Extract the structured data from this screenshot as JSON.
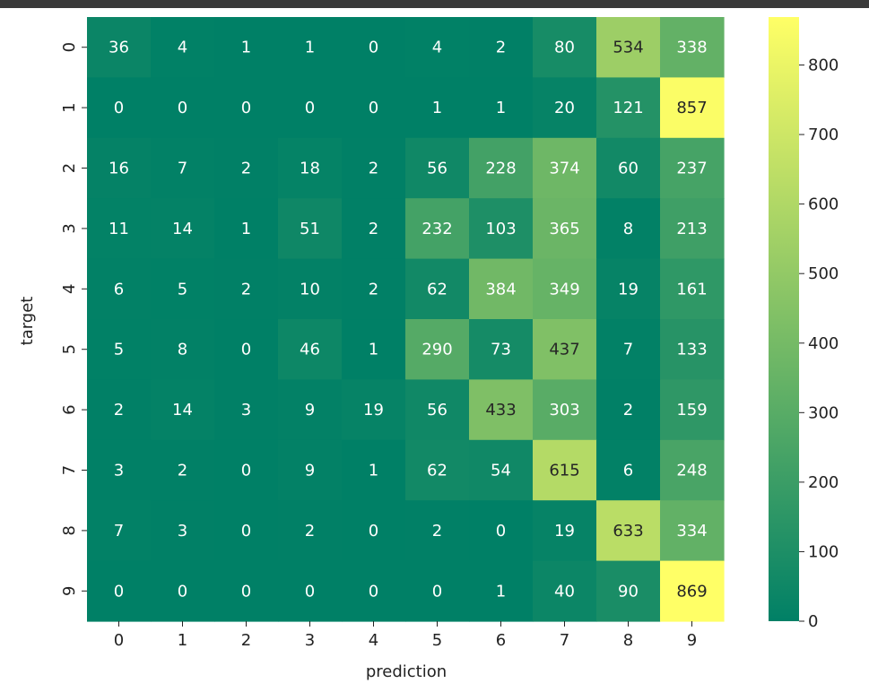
{
  "chart_data": {
    "type": "heatmap",
    "title": "",
    "xlabel": "prediction",
    "ylabel": "target",
    "x_categories": [
      "0",
      "1",
      "2",
      "3",
      "4",
      "5",
      "6",
      "7",
      "8",
      "9"
    ],
    "y_categories": [
      "0",
      "1",
      "2",
      "3",
      "4",
      "5",
      "6",
      "7",
      "8",
      "9"
    ],
    "values": [
      [
        36,
        4,
        1,
        1,
        0,
        4,
        2,
        80,
        534,
        338
      ],
      [
        0,
        0,
        0,
        0,
        0,
        1,
        1,
        20,
        121,
        857
      ],
      [
        16,
        7,
        2,
        18,
        2,
        56,
        228,
        374,
        60,
        237
      ],
      [
        11,
        14,
        1,
        51,
        2,
        232,
        103,
        365,
        8,
        213
      ],
      [
        6,
        5,
        2,
        10,
        2,
        62,
        384,
        349,
        19,
        161
      ],
      [
        5,
        8,
        0,
        46,
        1,
        290,
        73,
        437,
        7,
        133
      ],
      [
        2,
        14,
        3,
        9,
        19,
        56,
        433,
        303,
        2,
        159
      ],
      [
        3,
        2,
        0,
        9,
        1,
        62,
        54,
        615,
        6,
        248
      ],
      [
        7,
        3,
        0,
        2,
        0,
        2,
        0,
        19,
        633,
        334
      ],
      [
        0,
        0,
        0,
        0,
        0,
        0,
        1,
        40,
        90,
        869
      ]
    ],
    "colormap": "summer_r",
    "colormap_low": "#008066",
    "colormap_high": "#ffff66",
    "vmin": 0,
    "vmax": 869,
    "colorbar": {
      "ticks": [
        0,
        100,
        200,
        300,
        400,
        500,
        600,
        700,
        800
      ],
      "tick_labels": [
        "0",
        "100",
        "200",
        "300",
        "400",
        "500",
        "600",
        "700",
        "800"
      ]
    },
    "grid": false,
    "legend": "colorbar-right"
  }
}
